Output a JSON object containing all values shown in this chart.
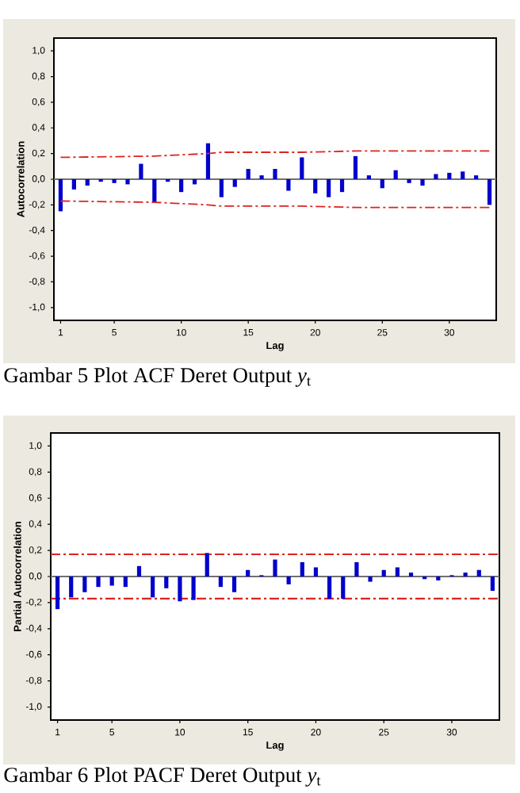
{
  "chart_data": [
    {
      "type": "bar",
      "xlabel": "Lag",
      "ylabel": "Autocorrelation",
      "x": [
        1,
        2,
        3,
        4,
        5,
        6,
        7,
        8,
        9,
        10,
        11,
        12,
        13,
        14,
        15,
        16,
        17,
        18,
        19,
        20,
        21,
        22,
        23,
        24,
        25,
        26,
        27,
        28,
        29,
        30,
        31,
        32,
        33
      ],
      "series": [
        {
          "color": "#0000cc",
          "values": [
            -0.25,
            -0.08,
            -0.05,
            -0.02,
            -0.03,
            -0.04,
            0.12,
            -0.18,
            -0.02,
            -0.1,
            -0.04,
            0.28,
            -0.14,
            -0.06,
            0.08,
            0.03,
            0.08,
            -0.09,
            0.17,
            -0.11,
            -0.14,
            -0.1,
            0.18,
            0.03,
            -0.07,
            0.07,
            -0.03,
            -0.05,
            0.04,
            0.05,
            0.06,
            0.03,
            -0.2
          ]
        },
        {
          "type": "line",
          "color": "#dd2222",
          "line_style": "dashed",
          "x": [
            1,
            8,
            12,
            13,
            19,
            23,
            24,
            33
          ],
          "values": [
            0.17,
            0.18,
            0.2,
            0.21,
            0.21,
            0.22,
            0.22,
            0.22
          ]
        },
        {
          "type": "line",
          "color": "#dd2222",
          "line_style": "dashed",
          "x": [
            1,
            8,
            12,
            13,
            19,
            23,
            24,
            33
          ],
          "values": [
            -0.17,
            -0.18,
            -0.2,
            -0.21,
            -0.21,
            -0.22,
            -0.22,
            -0.22
          ]
        }
      ],
      "ref_lines": [
        {
          "axis": "y",
          "value": 0,
          "color": "#707070"
        }
      ],
      "xlim": [
        0.5,
        33.5
      ],
      "xticks": [
        1,
        5,
        10,
        15,
        20,
        25,
        30
      ],
      "ylim": [
        -1.1,
        1.1
      ],
      "yticks": [
        {
          "value": -1.0,
          "label": "-1,0"
        },
        {
          "value": -0.8,
          "label": "-0,8"
        },
        {
          "value": -0.6,
          "label": "-0,6"
        },
        {
          "value": -0.4,
          "label": "-0,4"
        },
        {
          "value": -0.2,
          "label": "-0,2"
        },
        {
          "value": 0.0,
          "label": "0,0"
        },
        {
          "value": 0.2,
          "label": "0,2"
        },
        {
          "value": 0.4,
          "label": "0,4"
        },
        {
          "value": 0.6,
          "label": "0,6"
        },
        {
          "value": 0.8,
          "label": "0,8"
        },
        {
          "value": 1.0,
          "label": "1,0"
        }
      ],
      "annotations": [
        "Gambar 5  Plot ACF Deret Output *y*$_{t}$"
      ]
    },
    {
      "type": "bar",
      "xlabel": "Lag",
      "ylabel": "Partial Autocorrelation",
      "x": [
        1,
        2,
        3,
        4,
        5,
        6,
        7,
        8,
        9,
        10,
        11,
        12,
        13,
        14,
        15,
        16,
        17,
        18,
        19,
        20,
        21,
        22,
        23,
        24,
        25,
        26,
        27,
        28,
        29,
        30,
        31,
        32,
        33
      ],
      "series": [
        {
          "color": "#0000cc",
          "values": [
            -0.25,
            -0.16,
            -0.12,
            -0.08,
            -0.07,
            -0.08,
            0.08,
            -0.16,
            -0.09,
            -0.19,
            -0.18,
            0.18,
            -0.08,
            -0.12,
            0.05,
            0.01,
            0.13,
            -0.06,
            0.11,
            0.07,
            -0.17,
            -0.17,
            0.11,
            -0.04,
            0.05,
            0.07,
            0.03,
            -0.02,
            -0.03,
            0.01,
            0.03,
            0.05,
            -0.11
          ]
        }
      ],
      "ref_lines": [
        {
          "axis": "y",
          "value": 0,
          "color": "#707070"
        },
        {
          "axis": "y",
          "value": 0.17,
          "color": "#dd2222",
          "line_style": "dashed"
        },
        {
          "axis": "y",
          "value": -0.17,
          "color": "#dd2222",
          "line_style": "dashed"
        }
      ],
      "xlim": [
        0.5,
        33.5
      ],
      "xticks": [
        1,
        5,
        10,
        15,
        20,
        25,
        30
      ],
      "ylim": [
        -1.1,
        1.1
      ],
      "yticks": [
        {
          "value": -1.0,
          "label": "-1,0"
        },
        {
          "value": -0.8,
          "label": "-0,8"
        },
        {
          "value": -0.6,
          "label": "-0,6"
        },
        {
          "value": -0.4,
          "label": "-0,4"
        },
        {
          "value": -0.2,
          "label": "-0,2"
        },
        {
          "value": 0.0,
          "label": "0,0"
        },
        {
          "value": 0.2,
          "label": "0,2"
        },
        {
          "value": 0.4,
          "label": "0,4"
        },
        {
          "value": 0.6,
          "label": "0,6"
        },
        {
          "value": 0.8,
          "label": "0,8"
        },
        {
          "value": 1.0,
          "label": "1,0"
        }
      ],
      "annotations": [
        "Gambar 6  Plot PACF Deret Output *y*$_{t}$"
      ]
    }
  ]
}
